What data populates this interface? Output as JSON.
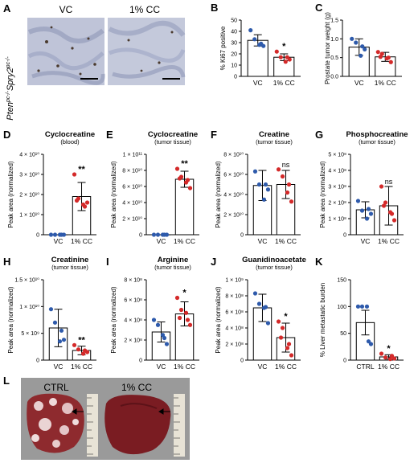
{
  "colors": {
    "vc": "#2e5aab",
    "cc": "#d42a2a",
    "bar": "#ffffff",
    "axis": "#000000"
  },
  "panel_A": {
    "letter": "A",
    "genotype_html": "Pten<sup>pc-/-</sup>Spry2<sup>pc-/-</sup>",
    "genotype": "Pten pc-/- Spry2 pc-/-",
    "labels": [
      "VC",
      "1% CC"
    ]
  },
  "panel_L": {
    "letter": "L",
    "labels": [
      "CTRL",
      "1% CC"
    ]
  },
  "chart_data": [
    {
      "id": "B",
      "type": "bar",
      "title": "",
      "subtitle": "",
      "ylabel": "% Ki67 positive",
      "categories": [
        "VC",
        "1% CC"
      ],
      "ylim": [
        0,
        50
      ],
      "ticks": [
        "0",
        "10",
        "20",
        "30",
        "40",
        "50"
      ],
      "means": [
        32,
        17
      ],
      "sd": [
        5,
        3
      ],
      "sig": [
        "",
        "*"
      ],
      "points": [
        [
          41,
          33,
          28,
          27,
          29
        ],
        [
          22,
          17,
          13,
          15,
          17
        ]
      ]
    },
    {
      "id": "C",
      "type": "bar",
      "title": "",
      "subtitle": "",
      "ylabel": "Prostate tumor weight (g)",
      "categories": [
        "VC",
        "1% CC"
      ],
      "ylim": [
        0,
        1.5
      ],
      "ticks": [
        "0.0",
        "0.5",
        "1.0",
        "1.5"
      ],
      "means": [
        0.78,
        0.52
      ],
      "sd": [
        0.22,
        0.12
      ],
      "sig": [
        "",
        ""
      ],
      "points": [
        [
          1.0,
          0.9,
          0.55,
          0.72,
          0.8
        ],
        [
          0.65,
          0.6,
          0.48,
          0.38,
          0.5,
          0.52
        ]
      ]
    },
    {
      "id": "D",
      "type": "bar",
      "title": "Cyclocreatine",
      "subtitle": "(blood)",
      "ylabel": "Peak area (normalized)",
      "categories": [
        "VC",
        "1% CC"
      ],
      "ylim": [
        0,
        40000000000.0
      ],
      "ticks": [
        "0",
        "1 × 10¹⁰",
        "2 × 10¹⁰",
        "3 × 10¹⁰",
        "4 × 10¹⁰"
      ],
      "means": [
        0,
        19000000000.0
      ],
      "sd": [
        0,
        7000000000.0
      ],
      "sig": [
        "",
        "**"
      ],
      "points": [
        [
          0,
          0,
          0,
          0,
          0
        ],
        [
          30000000000.0,
          18000000000.0,
          15000000000.0,
          16000000000.0,
          14000000000.0,
          17000000000.0
        ]
      ]
    },
    {
      "id": "E",
      "type": "bar",
      "title": "Cyclocreatine",
      "subtitle": "(tumor tissue)",
      "ylabel": "Peak area (normalized)",
      "categories": [
        "VC",
        "1% CC"
      ],
      "ylim": [
        0,
        100000000000.0
      ],
      "ticks": [
        "0",
        "2 × 10¹⁰",
        "4 × 10¹⁰",
        "6 × 10¹⁰",
        "8 × 10¹⁰",
        "1 × 10¹¹"
      ],
      "means": [
        0,
        69000000000.0
      ],
      "sd": [
        0,
        10000000000.0
      ],
      "sig": [
        "",
        "**"
      ],
      "points": [
        [
          0,
          0,
          0,
          0,
          0
        ],
        [
          82000000000.0,
          72000000000.0,
          65000000000.0,
          58000000000.0,
          68000000000.0,
          70000000000.0
        ]
      ]
    },
    {
      "id": "F",
      "type": "bar",
      "title": "Creatine",
      "subtitle": "(tumor tissue)",
      "ylabel": "Peak area (normalized)",
      "categories": [
        "VC",
        "1% CC"
      ],
      "ylim": [
        0,
        80000000000.0
      ],
      "ticks": [
        "0",
        "2 × 10¹⁰",
        "4 × 10¹⁰",
        "6 × 10¹⁰",
        "8 × 10¹⁰"
      ],
      "means": [
        49000000000.0,
        50000000000.0
      ],
      "sd": [
        15000000000.0,
        14000000000.0
      ],
      "sig": [
        "",
        "ns"
      ],
      "points": [
        [
          63000000000.0,
          50000000000.0,
          35000000000.0,
          45000000000.0,
          50000000000.0
        ],
        [
          65000000000.0,
          58000000000.0,
          42000000000.0,
          33000000000.0,
          50000000000.0
        ]
      ]
    },
    {
      "id": "G",
      "type": "bar",
      "title": "Phosphocreatine",
      "subtitle": "(tumor tissue)",
      "ylabel": "Peak area (normalized)",
      "categories": [
        "VC",
        "1% CC"
      ],
      "ylim": [
        0,
        500000000.0
      ],
      "ticks": [
        "0",
        "1 × 10⁸",
        "2 × 10⁸",
        "3 × 10⁸",
        "4 × 10⁸",
        "5 × 10⁸"
      ],
      "means": [
        155000000.0,
        180000000.0
      ],
      "sd": [
        50000000.0,
        120000000.0
      ],
      "sig": [
        "",
        "ns"
      ],
      "points": [
        [
          210000000.0,
          150000000.0,
          100000000.0,
          130000000.0,
          160000000.0
        ],
        [
          300000000.0,
          200000000.0,
          140000000.0,
          90000000.0,
          130000000.0,
          180000000.0
        ]
      ]
    },
    {
      "id": "H",
      "type": "bar",
      "title": "Creatinine",
      "subtitle": "(tumor tissue)",
      "ylabel": "Peak area (normalized)",
      "categories": [
        "VC",
        "1% CC"
      ],
      "ylim": [
        0,
        15000000000.0
      ],
      "ticks": [
        "0",
        "5 × 10⁹",
        "1 × 10¹⁰",
        "1.5 × 10¹⁰"
      ],
      "means": [
        6000000000.0,
        1800000000.0
      ],
      "sd": [
        3500000000.0,
        800000000.0
      ],
      "sig": [
        "",
        "**"
      ],
      "points": [
        [
          9500000000.0,
          7000000000.0,
          3500000000.0,
          3800000000.0,
          5500000000.0
        ],
        [
          2800000000.0,
          2000000000.0,
          1200000000.0,
          1500000000.0,
          1800000000.0
        ]
      ]
    },
    {
      "id": "I",
      "type": "bar",
      "title": "Arginine",
      "subtitle": "(tumor tissue)",
      "ylabel": "Peak area (normalized)",
      "categories": [
        "VC",
        "1% CC"
      ],
      "ylim": [
        0,
        800000000.0
      ],
      "ticks": [
        "0",
        "2 × 10⁸",
        "4 × 10⁸",
        "6 × 10⁸",
        "8 × 10⁸"
      ],
      "means": [
        280000000.0,
        460000000.0
      ],
      "sd": [
        100000000.0,
        120000000.0
      ],
      "sig": [
        "",
        "*"
      ],
      "points": [
        [
          400000000.0,
          350000000.0,
          250000000.0,
          160000000.0,
          220000000.0
        ],
        [
          620000000.0,
          500000000.0,
          470000000.0,
          350000000.0,
          400000000.0,
          420000000.0
        ]
      ]
    },
    {
      "id": "J",
      "type": "bar",
      "title": "Guanidinoacetate",
      "subtitle": "(tumor tissue)",
      "ylabel": "Peak area (normalized)",
      "categories": [
        "VC",
        "1% CC"
      ],
      "ylim": [
        0,
        1000000000.0
      ],
      "ticks": [
        "0",
        "2 × 10⁸",
        "4 × 10⁸",
        "6 × 10⁸",
        "8 × 10⁸",
        "1 × 10⁹"
      ],
      "means": [
        650000000.0,
        280000000.0
      ],
      "sd": [
        170000000.0,
        180000000.0
      ],
      "sig": [
        "",
        "*"
      ],
      "points": [
        [
          830000000.0,
          700000000.0,
          650000000.0,
          460000000.0,
          660000000.0
        ],
        [
          480000000.0,
          400000000.0,
          150000000.0,
          60000000.0,
          200000000.0,
          280000000.0
        ]
      ]
    },
    {
      "id": "K",
      "type": "bar",
      "title": "",
      "subtitle": "",
      "ylabel": "% Liver metastatic burden",
      "categories": [
        "CTRL",
        "1% CC"
      ],
      "ylim": [
        0,
        150
      ],
      "ticks": [
        "0",
        "50",
        "100",
        "150"
      ],
      "means": [
        70,
        6
      ],
      "sd": [
        23,
        4
      ],
      "sig": [
        "",
        "*"
      ],
      "points": [
        [
          100,
          100,
          100,
          30,
          35
        ],
        [
          12,
          5,
          2,
          3,
          8
        ]
      ]
    }
  ]
}
